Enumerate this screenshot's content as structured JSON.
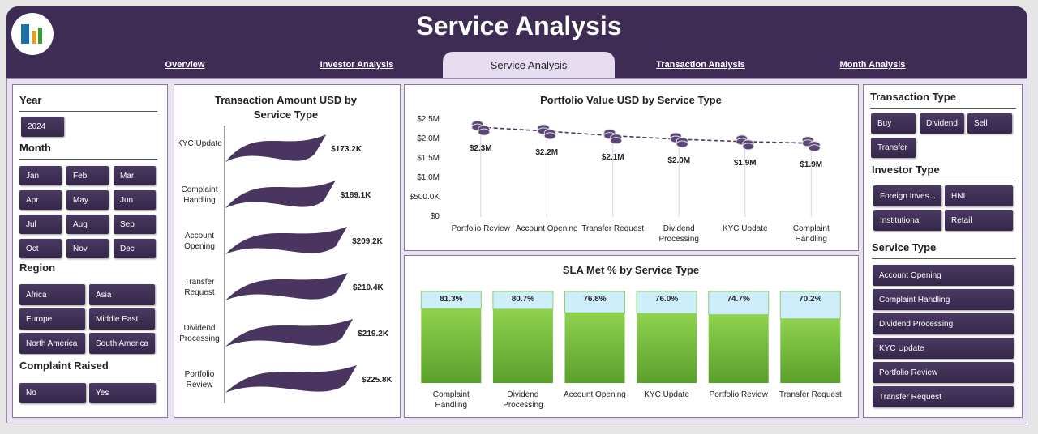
{
  "header": {
    "title": "Service Analysis"
  },
  "tabs": [
    "Overview",
    "Investor Analysis",
    "Service Analysis",
    "Transaction Analysis",
    "Month Analysis"
  ],
  "active_tab": 2,
  "left_slicers": [
    {
      "title": "Year",
      "items": [
        "2024"
      ]
    },
    {
      "title": "Month",
      "items": [
        "Jan",
        "Feb",
        "Mar",
        "Apr",
        "May",
        "Jun",
        "Jul",
        "Aug",
        "Sep",
        "Oct",
        "Nov",
        "Dec"
      ]
    },
    {
      "title": "Region",
      "items": [
        "Africa",
        "Asia",
        "Europe",
        "Middle East",
        "North America",
        "South America"
      ]
    },
    {
      "title": "Complaint Raised",
      "items": [
        "No",
        "Yes"
      ]
    }
  ],
  "right_slicers": [
    {
      "title": "Transaction Type",
      "items": [
        "Buy",
        "Dividend",
        "Sell",
        "Transfer"
      ]
    },
    {
      "title": "Investor Type",
      "items": [
        "Foreign Inves...",
        "HNI",
        "Institutional",
        "Retail"
      ]
    },
    {
      "title": "Service Type",
      "items": [
        "Account Opening",
        "Complaint Handling",
        "Dividend Processing",
        "KYC Update",
        "Portfolio Review",
        "Transfer Request"
      ]
    }
  ],
  "chart_data": [
    {
      "type": "wave-bar",
      "title": "Transaction Amount USD by Service Type",
      "categories": [
        "KYC Update",
        "Complaint Handling",
        "Account Opening",
        "Transfer Request",
        "Dividend Processing",
        "Portfolio Review"
      ],
      "values": [
        173200,
        189100,
        209200,
        210400,
        219200,
        225800
      ],
      "value_labels": [
        "$173.2K",
        "$189.1K",
        "$209.2K",
        "$210.4K",
        "$219.2K",
        "$225.8K"
      ],
      "color": "#4a3560"
    },
    {
      "type": "line",
      "title": "Portfolio Value USD by Service Type",
      "categories": [
        "Portfolio Review",
        "Account Opening",
        "Transfer Request",
        "Dividend Processing",
        "KYC Update",
        "Complaint Handling"
      ],
      "values": [
        2310000,
        2210000,
        2090000,
        2000000,
        1940000,
        1900000
      ],
      "value_labels": [
        "$2.3M",
        "$2.2M",
        "$2.1M",
        "$2.0M",
        "$1.9M",
        "$1.9M"
      ],
      "ylim": [
        0,
        2500000
      ],
      "yticks": [
        {
          "value": 0,
          "label": "$0"
        },
        {
          "value": 500000,
          "label": "$500.0K"
        },
        {
          "value": 1000000,
          "label": "$1.0M"
        },
        {
          "value": 1500000,
          "label": "$1.5M"
        },
        {
          "value": 2000000,
          "label": "$2.0M"
        },
        {
          "value": 2500000,
          "label": "$2.5M"
        }
      ],
      "color": "#4a3560"
    },
    {
      "type": "percent-bar",
      "title": "SLA Met % by Service Type",
      "categories": [
        "Complaint Handling",
        "Dividend Processing",
        "Account Opening",
        "KYC Update",
        "Portfolio Review",
        "Transfer Request"
      ],
      "values": [
        81.3,
        80.7,
        76.8,
        76.0,
        74.7,
        70.2
      ],
      "value_labels": [
        "81.3%",
        "80.7%",
        "76.8%",
        "76.0%",
        "74.7%",
        "70.2%"
      ],
      "ylim": [
        0,
        100
      ],
      "color": "#7cc242"
    }
  ]
}
